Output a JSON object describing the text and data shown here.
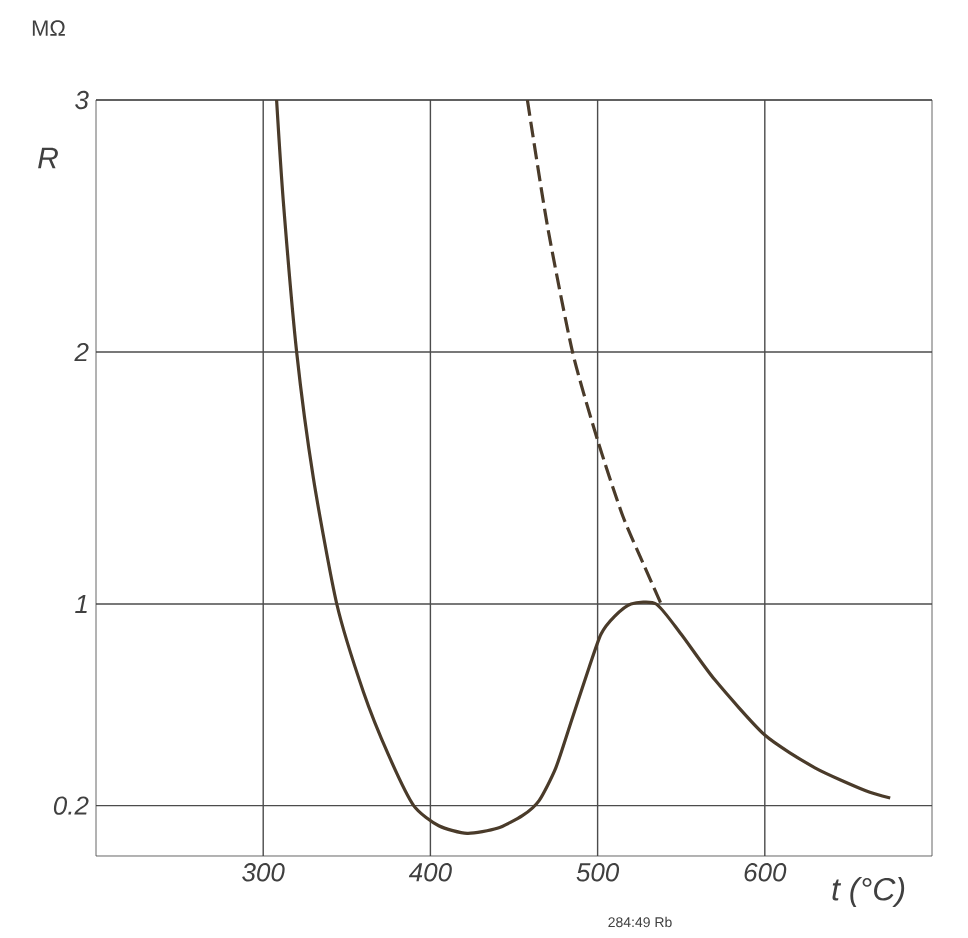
{
  "chart_data": {
    "type": "line",
    "xlabel": "t (°C)",
    "ylabel": "R",
    "annotations": [
      "MΩ",
      "284:49 Rb"
    ],
    "xlim": [
      200,
      700
    ],
    "ylim": [
      0,
      3
    ],
    "xticks": [
      300,
      400,
      500,
      600
    ],
    "yticks": [
      0.2,
      1,
      2,
      3
    ],
    "grid": true,
    "series": [
      {
        "color": "#4a3b2a",
        "line_style": "solid",
        "x": [
          308,
          312,
          320,
          330,
          344,
          360,
          375,
          390,
          405,
          422,
          440,
          455,
          465,
          475,
          485,
          495,
          502,
          510,
          520,
          535,
          550,
          570,
          600,
          630,
          660,
          675
        ],
        "values": [
          3.0,
          2.6,
          2.0,
          1.5,
          1.0,
          0.65,
          0.4,
          0.2,
          0.12,
          0.09,
          0.11,
          0.16,
          0.22,
          0.35,
          0.55,
          0.75,
          0.88,
          0.95,
          1.0,
          1.0,
          0.88,
          0.7,
          0.48,
          0.35,
          0.26,
          0.23
        ]
      },
      {
        "color": "#4a3b2a",
        "line_style": "dashed",
        "x": [
          458,
          470,
          485,
          500,
          515,
          528,
          538
        ],
        "values": [
          3.0,
          2.5,
          2.0,
          1.65,
          1.35,
          1.15,
          1.0
        ]
      }
    ]
  }
}
